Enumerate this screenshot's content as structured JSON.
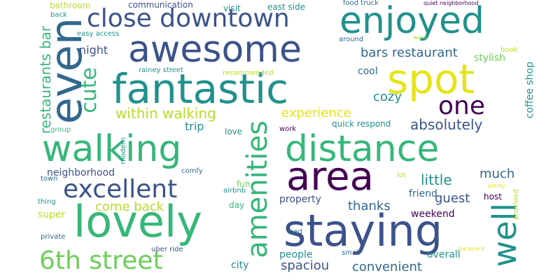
{
  "colors": {
    "background": "#ffffff",
    "dark_purple": "#440154",
    "indigo": "#3b528b",
    "blue": "#31688e",
    "teal": "#21918c",
    "green": "#35b779",
    "light_green": "#6ece58",
    "lime": "#b5de2b",
    "yellow": "#e5e419"
  },
  "words": {
    "awesome": "awesome",
    "fantastic": "fantastic",
    "walking": "walking",
    "distance": "distance",
    "lovely": "lovely",
    "staying": "staying",
    "area": "area",
    "spot": "spot",
    "enjoyed": "enjoyed",
    "even": "even",
    "excellent": "excellent",
    "close_downtown": "close downtown",
    "sixth_street": "6th street",
    "amenities": "amenities",
    "well": "well",
    "one": "one",
    "cute": "cute",
    "restaurants_bar": "restaurants bar",
    "within_walking": "within walking",
    "little": "little",
    "absolutely": "absolutely",
    "bars_restaurant": "bars restaurant",
    "experience": "experience",
    "come_back": "come back",
    "convenient": "convenient",
    "spaciou": "spaciou",
    "thanks": "thanks",
    "guest": "guest",
    "much": "much",
    "cozy": "cozy",
    "night": "night",
    "trip": "trip",
    "coffee_shop": "coffee shop",
    "stylish": "stylish",
    "neighborhood": "neighborhood",
    "overall": "overall",
    "super": "super",
    "weekend": "weekend",
    "property": "property",
    "friend": "friend",
    "cool": "cool",
    "east_side": "east side",
    "visit": "visit",
    "communication": "communication",
    "bathroom": "bathroom",
    "back": "back",
    "easy_access": "easy access",
    "food_truck": "food truck",
    "quiet_neighborhood": "quiet neighborhood",
    "want": "want",
    "around": "around",
    "book": "book",
    "rainey_street": "rainey street",
    "recommended": "recommended",
    "quick_respond": "quick respond",
    "love": "love",
    "work": "work",
    "group": "group",
    "modern": "modern",
    "comfy": "comfy",
    "airbnb": "airbnb",
    "town": "town",
    "thing": "thing",
    "day": "day",
    "fun": "fun",
    "lot": "lot",
    "plenty": "plenty",
    "host": "host",
    "provided": "provided",
    "private": "private",
    "bed": "bed",
    "uber_ride": "uber ride",
    "city": "city",
    "people": "people",
    "small": "small",
    "backyard": "backyard"
  }
}
